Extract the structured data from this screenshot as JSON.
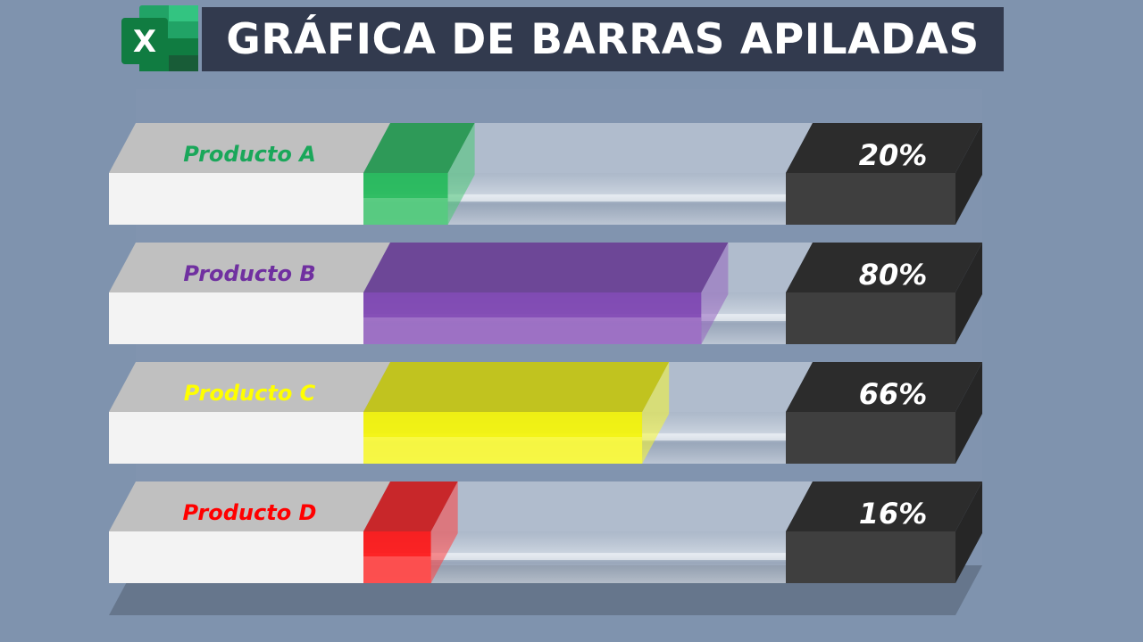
{
  "title": "GRÁFICA DE BARRAS APILADAS",
  "logo": {
    "icon": "excel-icon",
    "letter": "X"
  },
  "colors": {
    "background": "#7f93ae",
    "banner": "#323a4e"
  },
  "chart_data": {
    "type": "bar",
    "orientation": "horizontal",
    "style": "3d-stacked",
    "categories": [
      "Producto A",
      "Producto B",
      "Producto C",
      "Producto D"
    ],
    "values": [
      20,
      80,
      66,
      16
    ],
    "labels": [
      "20%",
      "80%",
      "66%",
      "16%"
    ],
    "xlim": [
      0,
      100
    ],
    "colors": [
      "#1db954",
      "#7b3fb0",
      "#f5f500",
      "#ff1010"
    ],
    "label_colors": [
      "#1aa75a",
      "#7030a0",
      "#ffff00",
      "#ff0000"
    ]
  }
}
